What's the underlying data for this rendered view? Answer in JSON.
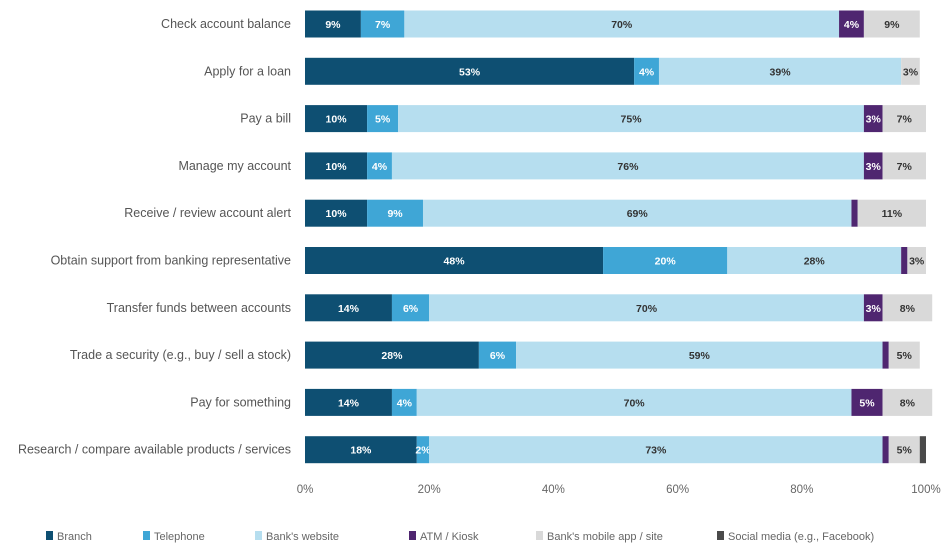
{
  "chart_data": {
    "type": "bar",
    "orientation": "horizontal",
    "stacked": true,
    "normalized": true,
    "categories": [
      "Check account balance",
      "Apply for a loan",
      "Pay a bill",
      "Manage my account",
      "Receive / review account alert",
      "Obtain support from banking representative",
      "Transfer funds between accounts",
      "Trade a security (e.g., buy / sell a stock)",
      "Pay for something",
      "Research / compare available products / services"
    ],
    "series": [
      {
        "name": "Branch",
        "color": "#0e4f72",
        "text_color": "#ffffff",
        "values": [
          9,
          53,
          10,
          10,
          10,
          48,
          14,
          28,
          14,
          18
        ]
      },
      {
        "name": "Telephone",
        "color": "#3fa6d6",
        "text_color": "#ffffff",
        "values": [
          7,
          4,
          5,
          4,
          9,
          20,
          6,
          6,
          4,
          2
        ]
      },
      {
        "name": "Bank's website",
        "color": "#b6deef",
        "text_color": "#333333",
        "values": [
          70,
          39,
          75,
          76,
          69,
          28,
          70,
          59,
          70,
          73
        ]
      },
      {
        "name": "ATM / Kiosk",
        "color": "#4f2670",
        "text_color": "#ffffff",
        "values": [
          4,
          0,
          3,
          3,
          1,
          1,
          3,
          1,
          5,
          1
        ]
      },
      {
        "name": "Bank's mobile app / site",
        "color": "#d9d9d9",
        "text_color": "#333333",
        "values": [
          9,
          3,
          7,
          7,
          11,
          3,
          8,
          5,
          8,
          5
        ]
      },
      {
        "name": "Social media (e.g., Facebook)",
        "color": "#4a4a4a",
        "text_color": "#ffffff",
        "values": [
          0,
          0,
          0,
          0,
          0,
          0,
          0,
          0,
          0,
          1
        ]
      }
    ],
    "value_labels": [
      [
        "9%",
        "7%",
        "70%",
        "4%",
        "9%",
        ""
      ],
      [
        "53%",
        "4%",
        "39%",
        "",
        "3%",
        ""
      ],
      [
        "10%",
        "5%",
        "75%",
        "3%",
        "7%",
        ""
      ],
      [
        "10%",
        "4%",
        "76%",
        "3%",
        "7%",
        ""
      ],
      [
        "10%",
        "9%",
        "69%",
        "",
        "11%",
        ""
      ],
      [
        "48%",
        "20%",
        "28%",
        "",
        "3%",
        ""
      ],
      [
        "14%",
        "6%",
        "70%",
        "3%",
        "8%",
        ""
      ],
      [
        "28%",
        "6%",
        "59%",
        "",
        "5%",
        ""
      ],
      [
        "14%",
        "4%",
        "70%",
        "5%",
        "8%",
        ""
      ],
      [
        "18%",
        "2%",
        "73%",
        "",
        "5%",
        ""
      ]
    ],
    "x_ticks": [
      "0%",
      "20%",
      "40%",
      "60%",
      "80%",
      "100%"
    ],
    "xlim": [
      0,
      100
    ],
    "grid": false,
    "legend_position": "bottom",
    "title": "",
    "xlabel": "",
    "ylabel": ""
  }
}
